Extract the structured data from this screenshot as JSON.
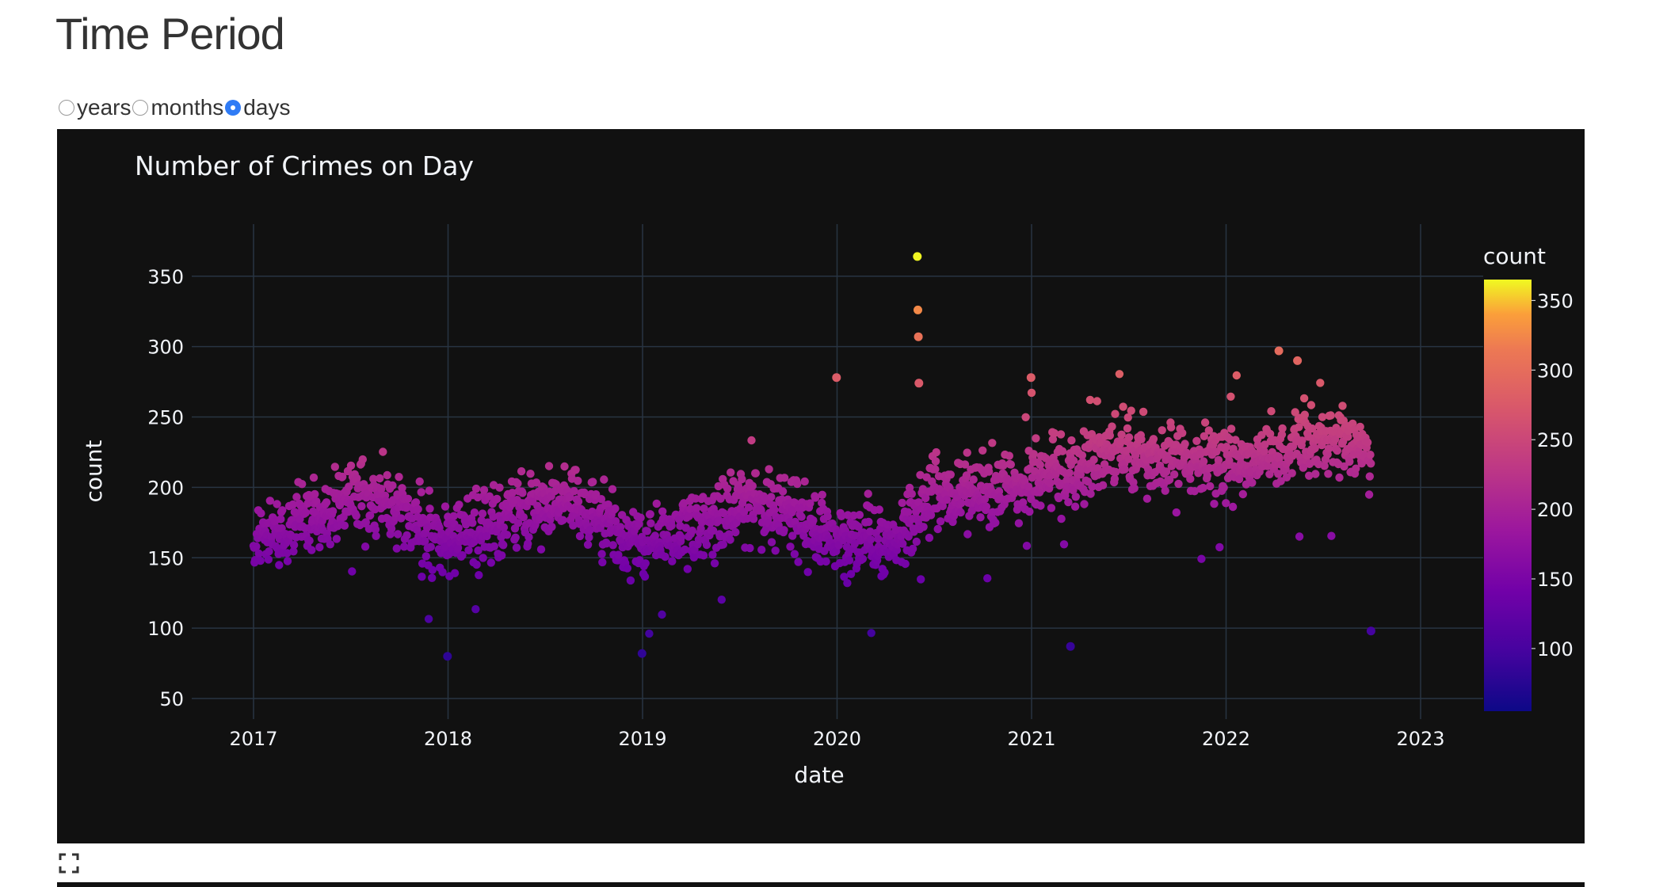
{
  "page": {
    "title": "Time Period"
  },
  "period_selector": {
    "options": [
      {
        "label": "years",
        "selected": false
      },
      {
        "label": "months",
        "selected": false
      },
      {
        "label": "days",
        "selected": true
      }
    ],
    "accent_color": "#2f7bf5"
  },
  "icons": {
    "fullscreen": "fullscreen-icon"
  },
  "chart_data": {
    "type": "scatter",
    "title": "Number of Crimes on Day",
    "xlabel": "date",
    "ylabel": "count",
    "x_ticks": [
      "2017",
      "2018",
      "2019",
      "2020",
      "2021",
      "2022",
      "2023"
    ],
    "y_ticks": [
      50,
      100,
      150,
      200,
      250,
      300,
      350
    ],
    "xlim": [
      "2016-09-01",
      "2023-02-01"
    ],
    "ylim": [
      35,
      385
    ],
    "x_range_data": [
      "2017-01-01",
      "2022-09-30"
    ],
    "grid": true,
    "background": "#111111",
    "colorscale": "plasma",
    "colorbar": {
      "title": "count",
      "ticks": [
        100,
        150,
        200,
        250,
        300,
        350
      ],
      "range": [
        55,
        365
      ]
    },
    "notable_points": [
      {
        "x": "2020-05-31",
        "y": 364
      },
      {
        "x": "2020-06-01",
        "y": 326
      },
      {
        "x": "2020-06-02",
        "y": 307
      },
      {
        "x": "2020-06-03",
        "y": 274
      },
      {
        "x": "2019-12-31",
        "y": 278
      },
      {
        "x": "2020-12-31",
        "y": 278
      },
      {
        "x": "2022-04-10",
        "y": 297
      },
      {
        "x": "2022-05-15",
        "y": 290
      },
      {
        "x": "2017-12-31",
        "y": 80
      },
      {
        "x": "2018-12-31",
        "y": 82
      },
      {
        "x": "2021-03-15",
        "y": 87
      },
      {
        "x": "2022-09-30",
        "y": 98
      }
    ]
  }
}
